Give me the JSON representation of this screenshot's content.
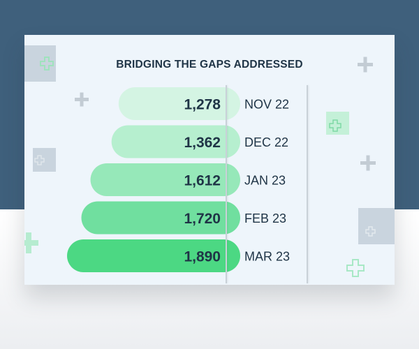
{
  "chart_data": {
    "type": "bar",
    "orientation": "horizontal",
    "title": "BRIDGING THE GAPS ADDRESSED",
    "categories": [
      "NOV 22",
      "DEC 22",
      "JAN 23",
      "FEB 23",
      "MAR 23"
    ],
    "values": [
      1278,
      1362,
      1612,
      1720,
      1890
    ],
    "value_labels": [
      "1,278",
      "1,362",
      "1,612",
      "1,720",
      "1,890"
    ],
    "xlabel": "",
    "ylabel": "",
    "grid": false,
    "legend": "none",
    "bar_colors": [
      "#d4f4e3",
      "#b6efcf",
      "#96e8b9",
      "#70df9f",
      "#4cd883"
    ]
  },
  "colors": {
    "background_top": "#3f607c",
    "card": "#eef5fb",
    "title_text": "#1f3446",
    "value_text": "#1f3446",
    "decor_gray": "#c5ced6",
    "decor_green": "#bfeed4"
  }
}
